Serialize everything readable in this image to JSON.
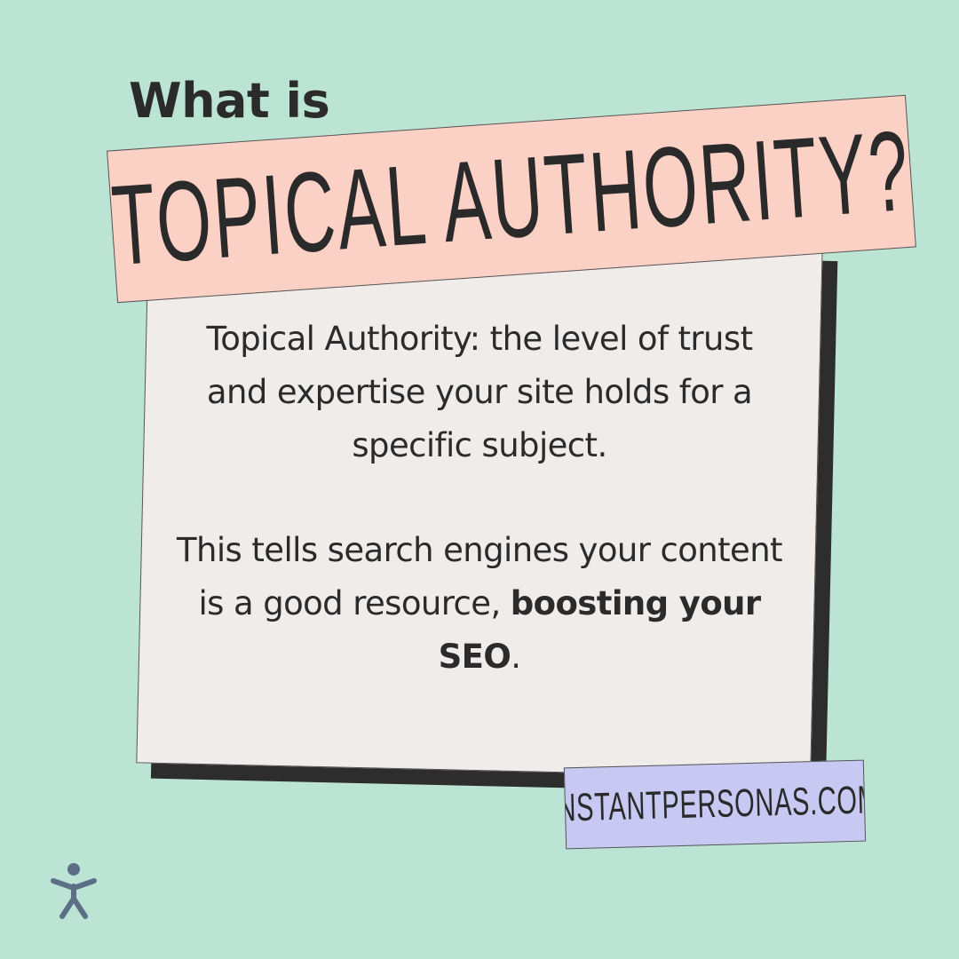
{
  "heading": {
    "intro": "What is",
    "title": "TOPICAL AUTHORITY?"
  },
  "card": {
    "paragraph1": "Topical Authority: the level of trust and expertise your site holds for a specific subject.",
    "paragraph2_prefix": "This tells search engines your content is a good resource, ",
    "paragraph2_bold": "boosting your SEO",
    "paragraph2_suffix": "."
  },
  "badge": {
    "label": "INSTANTPERSONAS.COM"
  },
  "logo": {
    "icon": "person-figure-icon"
  },
  "colors": {
    "background": "#bbe4d4",
    "banner": "#fbd1c6",
    "card": "#efecea",
    "card_shadow": "#2d2d2d",
    "badge": "#c8c9f3",
    "logo": "#5d6f86",
    "text": "#2b2b2b"
  }
}
